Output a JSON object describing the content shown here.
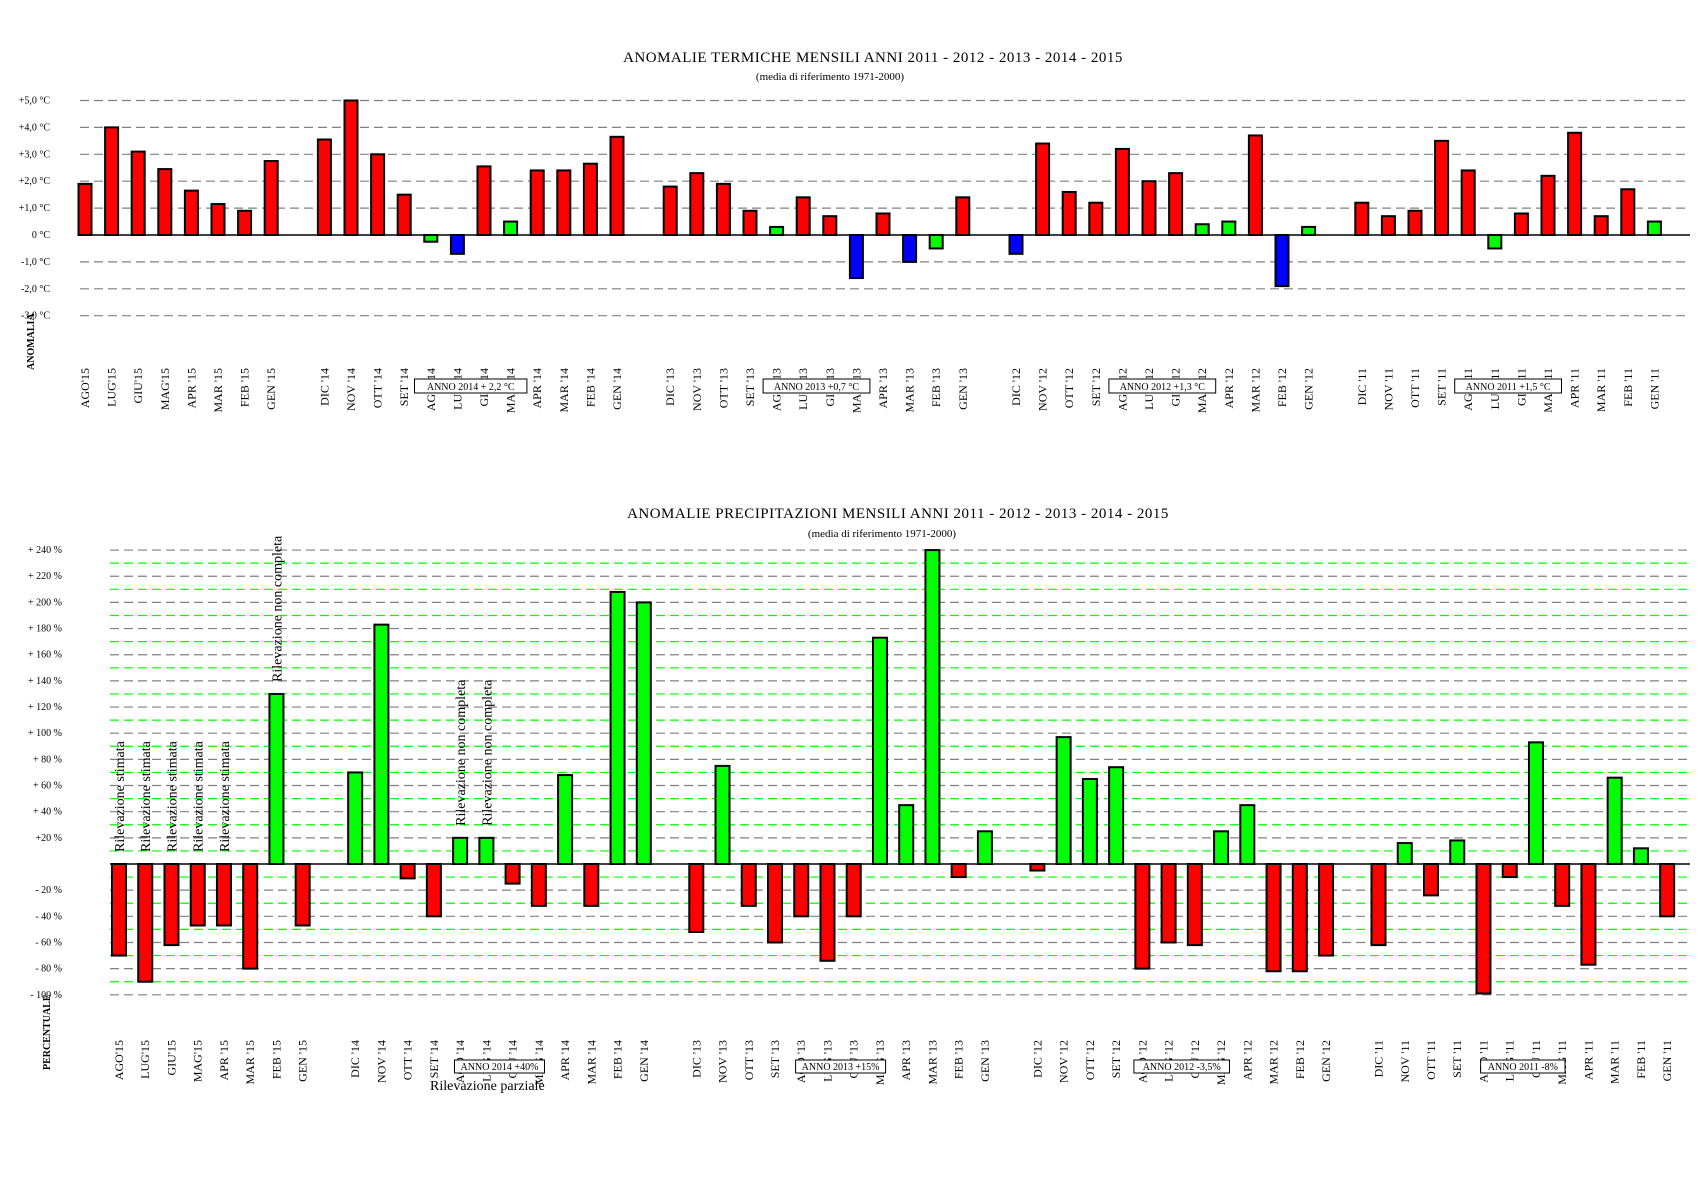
{
  "chart_data": [
    {
      "type": "bar",
      "title": "ANOMALIE  TERMICHE  MENSILI  ANNI  2011 - 2012 - 2013 - 2014 - 2015",
      "subtitle": "(media di riferimento 1971-2000)",
      "ylabel": "ANOMALIA",
      "ylim": [
        -3,
        5
      ],
      "grid": true,
      "yticks": [
        {
          "value": 5,
          "label": "+5,0 °C"
        },
        {
          "value": 4,
          "label": "+4,0 °C"
        },
        {
          "value": 3,
          "label": "+3,0 °C"
        },
        {
          "value": 2,
          "label": "+2,0 °C"
        },
        {
          "value": 1,
          "label": "+1,0 °C"
        },
        {
          "value": 0,
          "label": "0 °C"
        },
        {
          "value": -1,
          "label": "-1,0 °C"
        },
        {
          "value": -2,
          "label": "-2,0 °C"
        },
        {
          "value": -3,
          "label": "-3,0 °C"
        }
      ],
      "colors": {
        "red": "#ff0000",
        "green": "#00ff00",
        "blue": "#0000ff"
      },
      "groups": [
        {
          "year": "2015",
          "box": "",
          "categories": [
            "AGO'15",
            "LUG'15",
            "GIU'15",
            "MAG'15",
            "APR '15",
            "MAR '15",
            "FEB '15",
            "GEN '15"
          ],
          "values": [
            1.9,
            4.0,
            3.1,
            2.45,
            1.65,
            1.15,
            0.9,
            2.75
          ],
          "colors": [
            "red",
            "red",
            "red",
            "red",
            "red",
            "red",
            "red",
            "red"
          ]
        },
        {
          "year": "2014",
          "box": "ANNO 2014  + 2,2 °C",
          "categories": [
            "DIC '14",
            "NOV '14",
            "OTT '14",
            "SET '14",
            "AGO '14",
            "LUG '14",
            "GIU '14",
            "MAG '14",
            "APR '14",
            "MAR '14",
            "FEB '14",
            "GEN '14"
          ],
          "values": [
            3.55,
            5.0,
            3.0,
            1.5,
            -0.25,
            -0.7,
            2.55,
            0.5,
            2.4,
            2.4,
            2.65,
            3.65
          ],
          "colors": [
            "red",
            "red",
            "red",
            "red",
            "green",
            "blue",
            "red",
            "green",
            "red",
            "red",
            "red",
            "red"
          ]
        },
        {
          "year": "2013",
          "box": "ANNO 2013  +0,7 °C",
          "categories": [
            "DIC '13",
            "NOV '13",
            "OTT '13",
            "SET '13",
            "AGO '13",
            "LUG '13",
            "GIU '13",
            "MAG '13",
            "APR '13",
            "MAR '13",
            "FEB '13",
            "GEN '13"
          ],
          "values": [
            1.8,
            2.3,
            1.9,
            0.9,
            0.3,
            1.4,
            0.7,
            -1.6,
            0.8,
            -1.0,
            -0.5,
            1.4
          ],
          "colors": [
            "red",
            "red",
            "red",
            "red",
            "green",
            "red",
            "red",
            "blue",
            "red",
            "blue",
            "green",
            "red"
          ]
        },
        {
          "year": "2012",
          "box": "ANNO 2012  +1,3 °C",
          "categories": [
            "DIC '12",
            "NOV '12",
            "OTT '12",
            "SET '12",
            "AGO '12",
            "LUG '12",
            "GIU '12",
            "MAG '12",
            "APR '12",
            "MAR '12",
            "FEB '12",
            "GEN '12"
          ],
          "values": [
            -0.7,
            3.4,
            1.6,
            1.2,
            3.2,
            2.0,
            2.3,
            0.4,
            0.5,
            3.7,
            -1.9,
            0.3
          ],
          "colors": [
            "blue",
            "red",
            "red",
            "red",
            "red",
            "red",
            "red",
            "green",
            "green",
            "red",
            "blue",
            "green"
          ]
        },
        {
          "year": "2011",
          "box": "ANNO 2011  +1,5 °C",
          "categories": [
            "DIC '11",
            "NOV '11",
            "OTT '11",
            "SET '11",
            "AGO '11",
            "LUG '11",
            "GIU '11",
            "MAG '11",
            "APR '11",
            "MAR '11",
            "FEB '11",
            "GEN '11"
          ],
          "values": [
            1.2,
            0.7,
            0.9,
            3.5,
            2.4,
            -0.5,
            0.8,
            2.2,
            3.8,
            0.7,
            1.7,
            0.5
          ],
          "colors": [
            "red",
            "red",
            "red",
            "red",
            "red",
            "green",
            "red",
            "red",
            "red",
            "red",
            "red",
            "green"
          ]
        }
      ],
      "annotations": [],
      "note": ""
    },
    {
      "type": "bar",
      "title": "ANOMALIE  PRECIPITAZIONI  MENSILI  ANNI  2011 - 2012 - 2013 - 2014 - 2015",
      "subtitle": "(media di riferimento 1971-2000)",
      "ylabel": "PERCENTUALE",
      "ylim": [
        -100,
        240
      ],
      "grid": true,
      "yticks": [
        {
          "value": 240,
          "label": "+ 240 %"
        },
        {
          "value": 220,
          "label": "+ 220 %"
        },
        {
          "value": 200,
          "label": "+ 200 %"
        },
        {
          "value": 180,
          "label": "+ 180 %"
        },
        {
          "value": 160,
          "label": "+ 160 %"
        },
        {
          "value": 140,
          "label": "+ 140 %"
        },
        {
          "value": 120,
          "label": "+ 120 %"
        },
        {
          "value": 100,
          "label": "+ 100 %"
        },
        {
          "value": 80,
          "label": "+ 80 %"
        },
        {
          "value": 60,
          "label": "+ 60 %"
        },
        {
          "value": 40,
          "label": "+ 40 %"
        },
        {
          "value": 20,
          "label": "+20 %"
        },
        {
          "value": -20,
          "label": "- 20 %"
        },
        {
          "value": -40,
          "label": "- 40 %"
        },
        {
          "value": -60,
          "label": "- 60 %"
        },
        {
          "value": -80,
          "label": "- 80 %"
        },
        {
          "value": -100,
          "label": "- 100 %"
        }
      ],
      "colors": {
        "red": "#ff0000",
        "green": "#00ff00"
      },
      "groups": [
        {
          "year": "2015",
          "box": "",
          "categories": [
            "AGO'15",
            "LUG'15",
            "GIU'15",
            "MAG'15",
            "APR '15",
            "MAR '15",
            "FEB '15",
            "GEN '15"
          ],
          "values": [
            -70,
            -90,
            -62,
            -47,
            -47,
            -80,
            130,
            -47
          ]
        },
        {
          "year": "2014",
          "box": "ANNO 2014  +40%",
          "categories": [
            "DIC '14",
            "NOV '14",
            "OTT '14",
            "SET '14",
            "AGO '14",
            "LUG '14",
            "GIU '14",
            "MAG '14",
            "APR '14",
            "MAR '14",
            "FEB '14",
            "GEN '14"
          ],
          "values": [
            70,
            183,
            -11,
            -40,
            20,
            20,
            -15,
            -32,
            68,
            -32,
            208,
            200
          ]
        },
        {
          "year": "2013",
          "box": "ANNO 2013  +15%",
          "categories": [
            "DIC '13",
            "NOV '13",
            "OTT '13",
            "SET '13",
            "AGO '13",
            "LUG '13",
            "GIU '13",
            "MAG '13",
            "APR '13",
            "MAR '13",
            "FEB '13",
            "GEN '13"
          ],
          "values": [
            -52,
            75,
            -32,
            -60,
            -40,
            -74,
            -40,
            173,
            45,
            240,
            -10,
            25
          ]
        },
        {
          "year": "2012",
          "box": "ANNO 2012  -3,5%",
          "categories": [
            "DIC '12",
            "NOV '12",
            "OTT '12",
            "SET '12",
            "AGO '12",
            "LUG '12",
            "GIU '12",
            "MAG '12",
            "APR '12",
            "MAR '12",
            "FEB '12",
            "GEN '12"
          ],
          "values": [
            -5,
            97,
            65,
            74,
            -80,
            -60,
            -62,
            25,
            45,
            -82,
            -82,
            -70
          ]
        },
        {
          "year": "2011",
          "box": "ANNO 2011  -8%",
          "categories": [
            "DIC '11",
            "NOV '11",
            "OTT '11",
            "SET '11",
            "AGO '11",
            "LUG '11",
            "GIU '11",
            "MAG '11",
            "APR '11",
            "MAR '11",
            "FEB '11",
            "GEN '11"
          ],
          "values": [
            -62,
            16,
            -24,
            18,
            -99,
            -10,
            93,
            -32,
            -77,
            66,
            12,
            -40
          ]
        }
      ],
      "annotations": [
        {
          "group": 0,
          "index": 0,
          "text": "Rilevazione stimata"
        },
        {
          "group": 0,
          "index": 1,
          "text": "Rilevazione stimata"
        },
        {
          "group": 0,
          "index": 2,
          "text": "Rilevazione stimata"
        },
        {
          "group": 0,
          "index": 3,
          "text": "Rilevazione stimata"
        },
        {
          "group": 0,
          "index": 4,
          "text": "Rilevazione stimata"
        },
        {
          "group": 0,
          "index": 6,
          "text": "Rilevazione non completa"
        },
        {
          "group": 1,
          "index": 4,
          "text": "Rilevazione non completa"
        },
        {
          "group": 1,
          "index": 5,
          "text": "Rilevazione non completa"
        }
      ],
      "note": "Rilevazione parziale"
    }
  ]
}
